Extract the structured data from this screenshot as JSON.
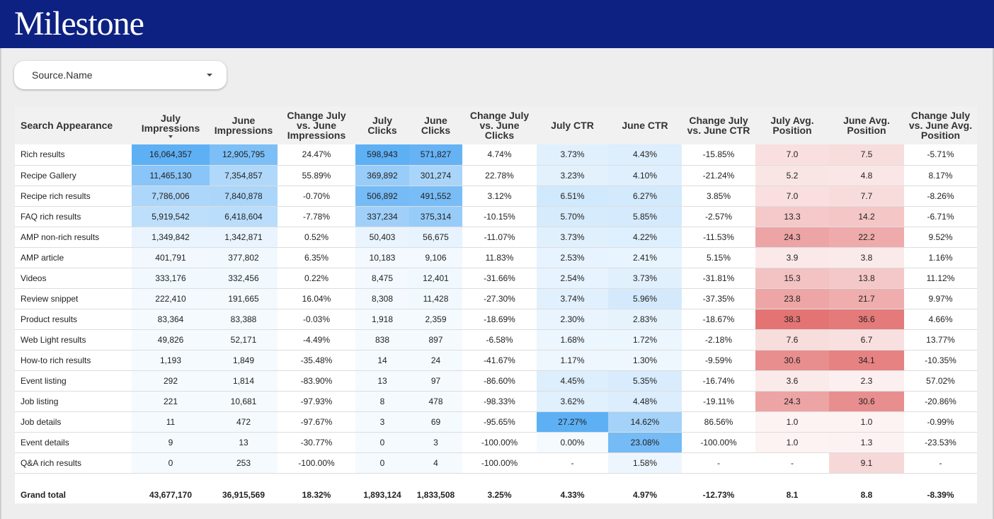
{
  "header": {
    "logo_text": "Milestone",
    "bg_color": "#0d2182"
  },
  "filter": {
    "label": "Source.Name"
  },
  "table": {
    "columns": [
      "Search Appearance",
      "July Impressions",
      "June Impressions",
      "Change July vs. June Impressions",
      "July Clicks",
      "June Clicks",
      "Change July vs. June Clicks",
      "July CTR",
      "June CTR",
      "Change July vs. June CTR",
      "July Avg. Position",
      "June Avg. Position",
      "Change July vs. June Avg. Position"
    ],
    "sorted_column": 1,
    "rows": [
      [
        "Rich results",
        "16,064,357",
        "12,905,795",
        "24.47%",
        "598,943",
        "571,827",
        "4.74%",
        "3.73%",
        "4.43%",
        "-15.85%",
        "7.0",
        "7.5",
        "-5.71%"
      ],
      [
        "Recipe Gallery",
        "11,465,130",
        "7,354,857",
        "55.89%",
        "369,892",
        "301,274",
        "22.78%",
        "3.23%",
        "4.10%",
        "-21.24%",
        "5.2",
        "4.8",
        "8.17%"
      ],
      [
        "Recipe rich results",
        "7,786,006",
        "7,840,878",
        "-0.70%",
        "506,892",
        "491,552",
        "3.12%",
        "6.51%",
        "6.27%",
        "3.85%",
        "7.0",
        "7.7",
        "-8.26%"
      ],
      [
        "FAQ rich results",
        "5,919,542",
        "6,418,604",
        "-7.78%",
        "337,234",
        "375,314",
        "-10.15%",
        "5.70%",
        "5.85%",
        "-2.57%",
        "13.3",
        "14.2",
        "-6.71%"
      ],
      [
        "AMP non-rich results",
        "1,349,842",
        "1,342,871",
        "0.52%",
        "50,403",
        "56,675",
        "-11.07%",
        "3.73%",
        "4.22%",
        "-11.53%",
        "24.3",
        "22.2",
        "9.52%"
      ],
      [
        "AMP article",
        "401,791",
        "377,802",
        "6.35%",
        "10,183",
        "9,106",
        "11.83%",
        "2.53%",
        "2.41%",
        "5.15%",
        "3.9",
        "3.8",
        "1.16%"
      ],
      [
        "Videos",
        "333,176",
        "332,456",
        "0.22%",
        "8,475",
        "12,401",
        "-31.66%",
        "2.54%",
        "3.73%",
        "-31.81%",
        "15.3",
        "13.8",
        "11.12%"
      ],
      [
        "Review snippet",
        "222,410",
        "191,665",
        "16.04%",
        "8,308",
        "11,428",
        "-27.30%",
        "3.74%",
        "5.96%",
        "-37.35%",
        "23.8",
        "21.7",
        "9.97%"
      ],
      [
        "Product results",
        "83,364",
        "83,388",
        "-0.03%",
        "1,918",
        "2,359",
        "-18.69%",
        "2.30%",
        "2.83%",
        "-18.67%",
        "38.3",
        "36.6",
        "4.66%"
      ],
      [
        "Web Light results",
        "49,826",
        "52,171",
        "-4.49%",
        "838",
        "897",
        "-6.58%",
        "1.68%",
        "1.72%",
        "-2.18%",
        "7.6",
        "6.7",
        "13.77%"
      ],
      [
        "How-to rich results",
        "1,193",
        "1,849",
        "-35.48%",
        "14",
        "24",
        "-41.67%",
        "1.17%",
        "1.30%",
        "-9.59%",
        "30.6",
        "34.1",
        "-10.35%"
      ],
      [
        "Event listing",
        "292",
        "1,814",
        "-83.90%",
        "13",
        "97",
        "-86.60%",
        "4.45%",
        "5.35%",
        "-16.74%",
        "3.6",
        "2.3",
        "57.02%"
      ],
      [
        "Job listing",
        "221",
        "10,681",
        "-97.93%",
        "8",
        "478",
        "-98.33%",
        "3.62%",
        "4.48%",
        "-19.11%",
        "24.3",
        "30.6",
        "-20.86%"
      ],
      [
        "Job details",
        "11",
        "472",
        "-97.67%",
        "3",
        "69",
        "-95.65%",
        "27.27%",
        "14.62%",
        "86.56%",
        "1.0",
        "1.0",
        "-0.99%"
      ],
      [
        "Event details",
        "9",
        "13",
        "-30.77%",
        "0",
        "3",
        "-100.00%",
        "0.00%",
        "23.08%",
        "-100.00%",
        "1.0",
        "1.3",
        "-23.53%"
      ],
      [
        "Q&A rich results",
        "0",
        "253",
        "-100.00%",
        "0",
        "4",
        "-100.00%",
        "-",
        "1.58%",
        "-",
        "-",
        "9.1",
        "-"
      ]
    ],
    "grand_total": [
      "Grand total",
      "43,677,170",
      "36,915,569",
      "18.32%",
      "1,893,124",
      "1,833,508",
      "3.25%",
      "4.33%",
      "4.97%",
      "-12.73%",
      "8.1",
      "8.8",
      "-8.39%"
    ]
  }
}
